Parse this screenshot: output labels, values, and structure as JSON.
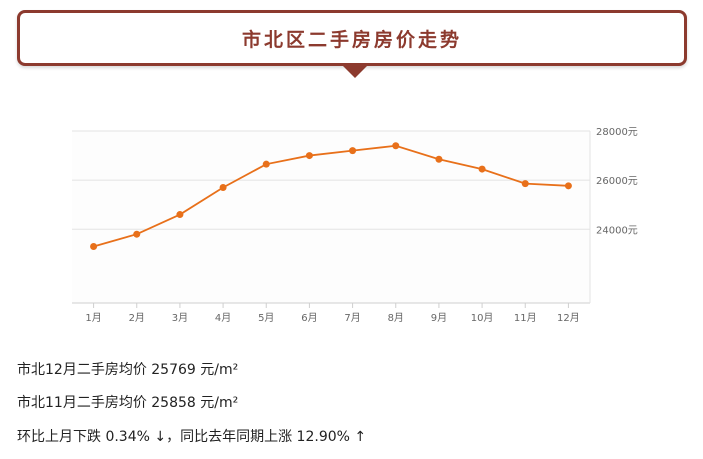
{
  "title": "市北区二手房房价走势",
  "chart_data": {
    "type": "line",
    "categories": [
      "1月",
      "2月",
      "3月",
      "4月",
      "5月",
      "6月",
      "7月",
      "8月",
      "9月",
      "10月",
      "11月",
      "12月"
    ],
    "values": [
      23300,
      23800,
      24600,
      25700,
      26650,
      27000,
      27200,
      27400,
      26850,
      26450,
      25858,
      25769
    ],
    "ylim": [
      21000,
      28000
    ],
    "y_ticks": [
      24000,
      26000,
      28000
    ],
    "y_tick_labels": [
      "24000元",
      "26000元",
      "28000元"
    ],
    "y_axis_side": "right",
    "grid": true,
    "line_color": "#e8701a",
    "title": "",
    "xlabel": "",
    "ylabel": ""
  },
  "info": {
    "line1": "市北12月二手房均价 25769 元/m²",
    "line2": "市北11月二手房均价 25858 元/m²",
    "line3": "环比上月下跌 0.34% ↓，同比去年同期上涨 12.90% ↑"
  }
}
